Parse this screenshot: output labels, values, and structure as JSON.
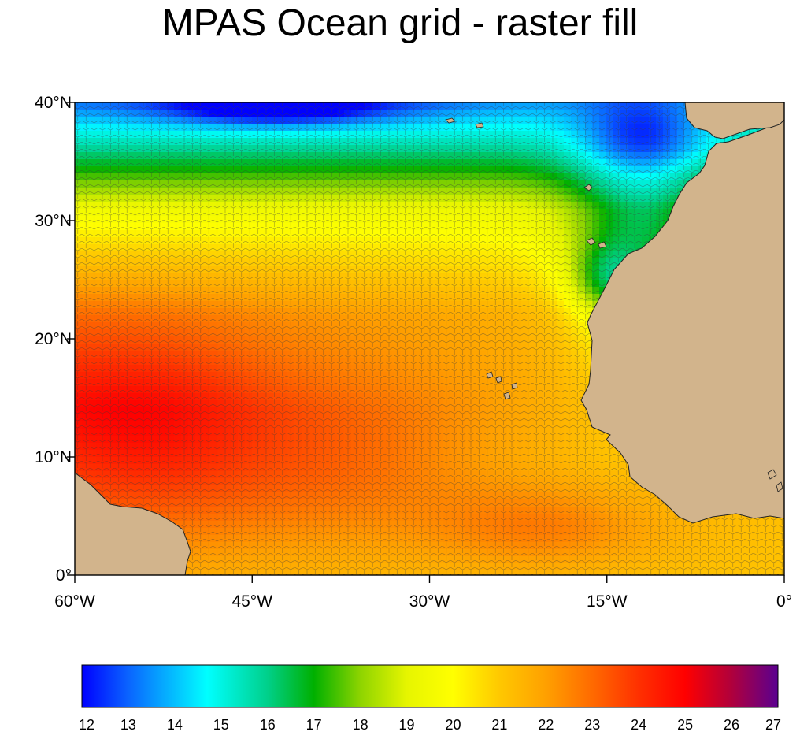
{
  "title": "MPAS Ocean grid - raster fill",
  "map": {
    "extent": {
      "lon": [
        -60,
        0
      ],
      "lat": [
        0,
        40
      ]
    },
    "x_ticks": [
      {
        "lon": -60,
        "label": "60°W"
      },
      {
        "lon": -45,
        "label": "45°W"
      },
      {
        "lon": -30,
        "label": "30°W"
      },
      {
        "lon": -15,
        "label": "15°W"
      },
      {
        "lon": 0,
        "label": "0°"
      }
    ],
    "y_ticks": [
      {
        "lat": 0,
        "label": "0°"
      },
      {
        "lat": 10,
        "label": "10°N"
      },
      {
        "lat": 20,
        "label": "20°N"
      },
      {
        "lat": 30,
        "label": "30°N"
      },
      {
        "lat": 40,
        "label": "40°N"
      }
    ],
    "land_color": "#d2b48c",
    "grid_line_color": "#3a3a3a"
  },
  "colorbar": {
    "min": 12,
    "max": 27,
    "labels": [
      "12",
      "13",
      "14",
      "15",
      "16",
      "17",
      "18",
      "19",
      "20",
      "21",
      "22",
      "23",
      "24",
      "25",
      "26",
      "27"
    ],
    "stops": [
      {
        "value": 12,
        "color": "#0000ff"
      },
      {
        "value": 13,
        "color": "#0a64ff"
      },
      {
        "value": 14.7,
        "color": "#00ffff"
      },
      {
        "value": 16,
        "color": "#00d08a"
      },
      {
        "value": 17,
        "color": "#00b000"
      },
      {
        "value": 18,
        "color": "#8ed400"
      },
      {
        "value": 19,
        "color": "#e6f500"
      },
      {
        "value": 20,
        "color": "#ffff00"
      },
      {
        "value": 21,
        "color": "#ffc800"
      },
      {
        "value": 22,
        "color": "#ffa000"
      },
      {
        "value": 23,
        "color": "#ff6a00"
      },
      {
        "value": 24,
        "color": "#ff3000"
      },
      {
        "value": 25,
        "color": "#ff0000"
      },
      {
        "value": 26,
        "color": "#b0003c"
      },
      {
        "value": 27,
        "color": "#5a0090"
      }
    ]
  }
}
